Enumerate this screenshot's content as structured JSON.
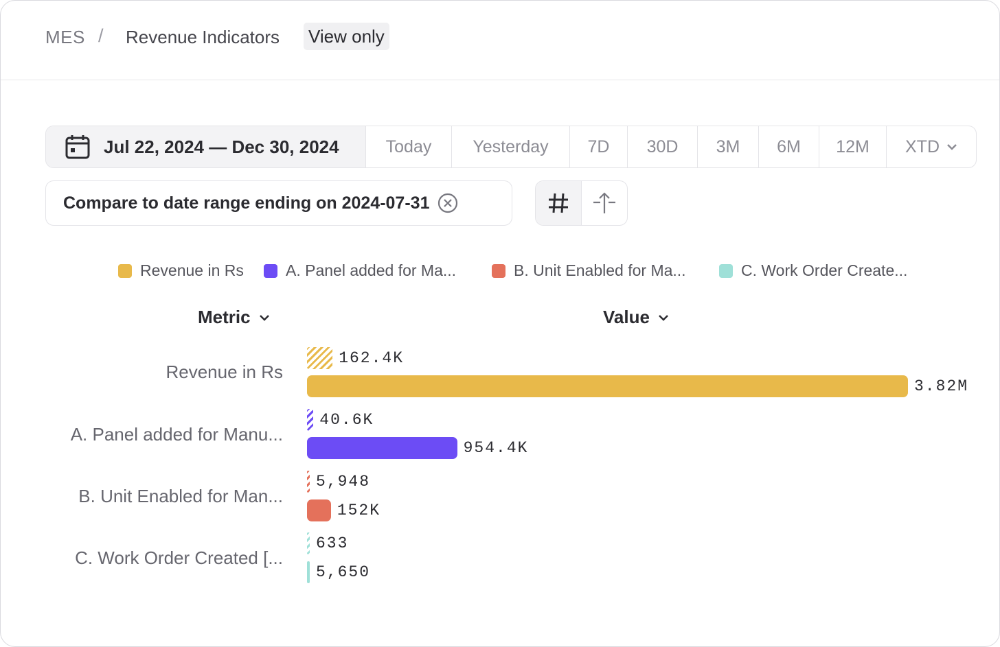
{
  "breadcrumb": {
    "root": "MES",
    "separator": "/",
    "title": "Revenue Indicators",
    "badge": "View only"
  },
  "date_bar": {
    "range_label": "Jul 22, 2024 — Dec 30, 2024",
    "presets": [
      "Today",
      "Yesterday",
      "7D",
      "30D",
      "3M",
      "6M",
      "12M",
      "XTD"
    ]
  },
  "compare": {
    "label": "Compare to date range ending on 2024-07-31"
  },
  "columns": {
    "metric": "Metric",
    "value": "Value"
  },
  "legend": [
    {
      "label": "Revenue in Rs",
      "color": "#e8b94a"
    },
    {
      "label": "A. Panel added for Ma...",
      "color": "#6c4cf5"
    },
    {
      "label": "B. Unit Enabled for Ma...",
      "color": "#e4715b"
    },
    {
      "label": "C. Work Order Create...",
      "color": "#9fe0d8"
    }
  ],
  "chart_data": {
    "type": "bar",
    "orientation": "horizontal",
    "categories": [
      "Revenue in Rs",
      "A. Panel added for Manu...",
      "B. Unit Enabled for Man...",
      "C. Work Order Created [..."
    ],
    "series": [
      {
        "style": "hatched",
        "values": [
          162400,
          40600,
          5948,
          633
        ],
        "labels": [
          "162.4K",
          "40.6K",
          "5,948",
          "633"
        ]
      },
      {
        "style": "solid",
        "values": [
          3820000,
          954400,
          152000,
          5650
        ],
        "labels": [
          "3.82M",
          "954.4K",
          "152K",
          "5,650"
        ]
      }
    ],
    "colors": [
      "#e8b94a",
      "#6c4cf5",
      "#e4715b",
      "#9fe0d8"
    ],
    "xlim": [
      0,
      3820000
    ]
  }
}
